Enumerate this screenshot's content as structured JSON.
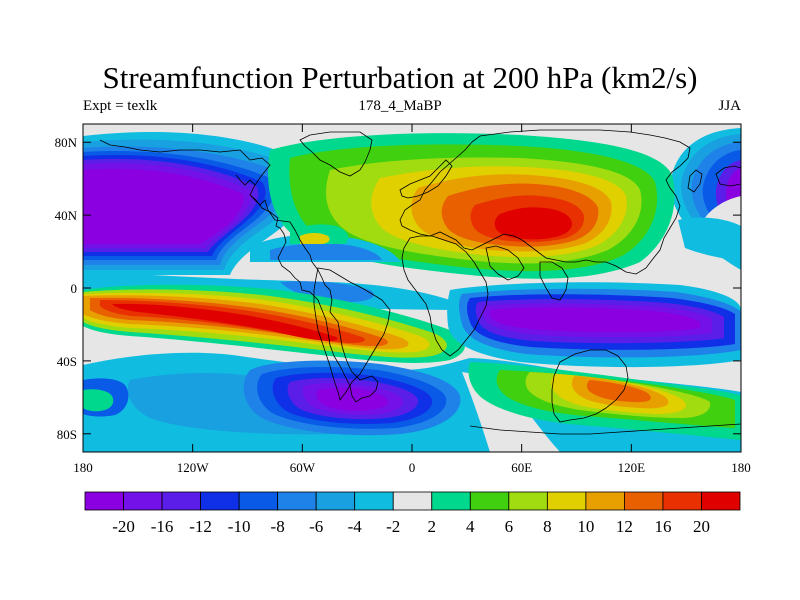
{
  "header": {
    "title": "Streamfunction Perturbation at 200 hPa (km2/s)",
    "left_label": "Expt = texlk",
    "center_label": "178_4_MaBP",
    "right_label": "JJA"
  },
  "axes": {
    "lat_ticks": [
      {
        "label": "80N",
        "value": 80
      },
      {
        "label": "40N",
        "value": 40
      },
      {
        "label": "0",
        "value": 0
      },
      {
        "label": "40S",
        "value": -40
      },
      {
        "label": "80S",
        "value": -80
      }
    ],
    "lon_ticks": [
      {
        "label": "180",
        "value": -180
      },
      {
        "label": "120W",
        "value": -120
      },
      {
        "label": "60W",
        "value": -60
      },
      {
        "label": "0",
        "value": 0
      },
      {
        "label": "60E",
        "value": 60
      },
      {
        "label": "120E",
        "value": 120
      },
      {
        "label": "180",
        "value": 180
      }
    ],
    "lon_range": [
      -180,
      180
    ],
    "lat_range": [
      -90,
      90
    ]
  },
  "colorbar": {
    "labels": [
      "-20",
      "-16",
      "-12",
      "-10",
      "-8",
      "-6",
      "-4",
      "-2",
      "2",
      "4",
      "6",
      "8",
      "10",
      "12",
      "16",
      "20"
    ],
    "colors": [
      "#8a00e0",
      "#7410e8",
      "#5a1ee8",
      "#1030e8",
      "#0a5ae8",
      "#1e82e8",
      "#18a0e0",
      "#10bde0",
      "#e6e6e6",
      "#00d88e",
      "#40d010",
      "#a0dc10",
      "#e0d000",
      "#e8a000",
      "#e86000",
      "#e83000",
      "#e00000"
    ]
  },
  "features": [
    {
      "name": "pos-high-asia",
      "level": 20,
      "lon": 78,
      "lat": 30,
      "rlon": 32,
      "rlat": 18
    },
    {
      "name": "neg-low-south-pacific",
      "level": -20,
      "lon": 100,
      "lat": -22,
      "rlon": 50,
      "rlat": 12
    },
    {
      "name": "pos-high-south-east-pacific",
      "level": 20,
      "lon": -110,
      "lat": -22,
      "rlon": 45,
      "rlat": 12
    },
    {
      "name": "neg-low-north-pacific",
      "level": -20,
      "lon": -140,
      "lat": 33,
      "rlon": 35,
      "rlat": 14
    },
    {
      "name": "neg-low-south-atlantic",
      "level": -20,
      "lon": -15,
      "lat": -58,
      "rlon": 20,
      "rlat": 9
    },
    {
      "name": "pos-high-south-indian",
      "level": 12,
      "lon": 100,
      "lat": -55,
      "rlon": 25,
      "rlat": 7
    }
  ]
}
